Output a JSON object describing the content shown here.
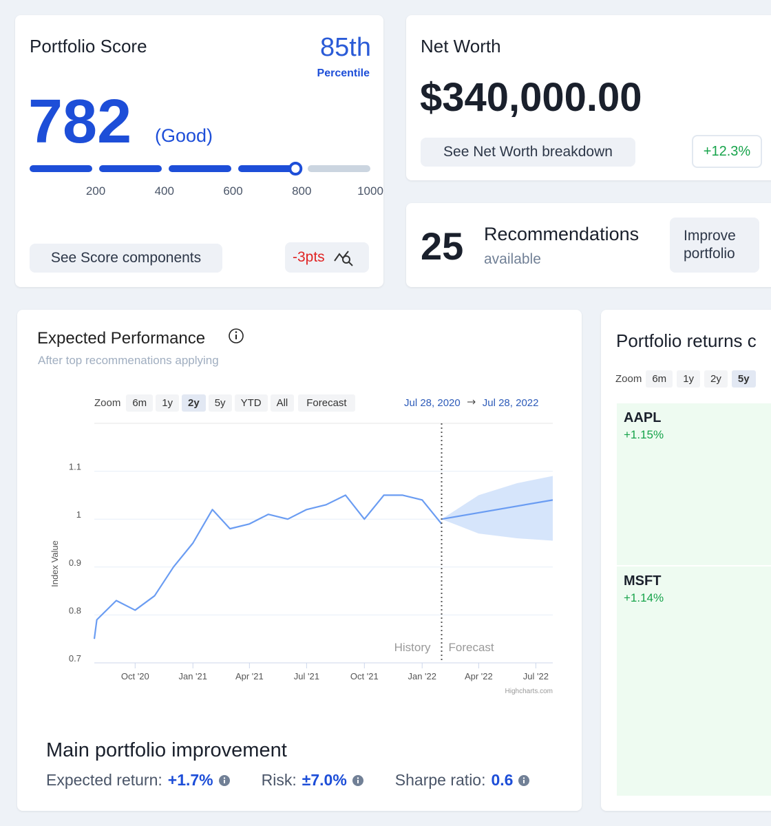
{
  "score_card": {
    "title": "Portfolio Score",
    "percentile": "85th",
    "percentile_caption": "Percentile",
    "value": 782,
    "rating": "(Good)",
    "scale": {
      "lim": [
        0,
        1000
      ],
      "ticks": [
        200,
        400,
        600,
        800,
        1000
      ]
    },
    "button": "See Score components",
    "change": "-3pts"
  },
  "net_worth_card": {
    "title": "Net Worth",
    "value": "$340,000.00",
    "button": "See Net Worth breakdown",
    "change": "+12.3%"
  },
  "recommendations_card": {
    "count": "25",
    "title": "Recommendations",
    "subtitle": "available",
    "button": "Improve portfolio"
  },
  "chart_data": {
    "type": "line",
    "title": "Expected Performance",
    "subtitle": "After top recommenations applying",
    "zoom_label": "Zoom",
    "zoom_buttons": [
      "6m",
      "1y",
      "2y",
      "5y",
      "YTD",
      "All"
    ],
    "active_zoom": "2y",
    "forecast_button": "Forecast",
    "range_from": "Jul 28, 2020",
    "range_to": "Jul 28, 2022",
    "y_label": "Index Value",
    "credit": "Highcharts.com",
    "xlim": [
      "2020-07-28",
      "2022-07-28"
    ],
    "ylim": [
      0.7,
      1.2
    ],
    "yticks": [
      0.7,
      0.8,
      0.9,
      1,
      1.1
    ],
    "grid": true,
    "xticks": [
      {
        "value": "2020-10",
        "label": "Oct '20"
      },
      {
        "value": "2021-01",
        "label": "Jan '21"
      },
      {
        "value": "2021-04",
        "label": "Apr '21"
      },
      {
        "value": "2021-07",
        "label": "Jul '21"
      },
      {
        "value": "2021-10",
        "label": "Oct '21"
      },
      {
        "value": "2022-01",
        "label": "Jan '22"
      },
      {
        "value": "2022-04",
        "label": "Apr '22"
      },
      {
        "value": "2022-07",
        "label": "Jul '22"
      }
    ],
    "series": [
      {
        "name": "History",
        "color": "#6a9cf2",
        "x": [
          "2020-07-28",
          "2020-08",
          "2020-09",
          "2020-10",
          "2020-11",
          "2020-12",
          "2021-01",
          "2021-02",
          "2021-03",
          "2021-04",
          "2021-05",
          "2021-06",
          "2021-07",
          "2021-08",
          "2021-09",
          "2021-10",
          "2021-11",
          "2021-12",
          "2022-01",
          "2022-02"
        ],
        "values": [
          0.75,
          0.79,
          0.83,
          0.81,
          0.84,
          0.9,
          0.95,
          1.02,
          0.98,
          0.99,
          1.01,
          1.0,
          1.02,
          1.03,
          1.05,
          1.0,
          1.05,
          1.05,
          1.04,
          0.99
        ]
      },
      {
        "name": "Forecast",
        "color": "#6a9cf2",
        "x": [
          "2022-02",
          "2022-07-28"
        ],
        "values": [
          1.0,
          1.04
        ]
      }
    ],
    "band": {
      "color": "#d6e5fb",
      "x": [
        "2022-02",
        "2022-04",
        "2022-06",
        "2022-07-28"
      ],
      "upper": [
        1.0,
        1.05,
        1.075,
        1.09
      ],
      "lower": [
        1.0,
        0.97,
        0.96,
        0.955
      ]
    },
    "divider": "2022-02",
    "history_label": "History",
    "forecast_label": "Forecast"
  },
  "improvement": {
    "title": "Main portfolio improvement",
    "metrics": [
      {
        "label": "Expected return:",
        "value": "+1.7%"
      },
      {
        "label": "Risk:",
        "value": "±7.0%"
      },
      {
        "label": "Sharpe ratio:",
        "value": "0.6"
      }
    ]
  },
  "returns_card": {
    "title": "Portfolio returns c",
    "zoom_label": "Zoom",
    "zoom_buttons": [
      "6m",
      "1y",
      "2y",
      "5y"
    ],
    "tiles": [
      {
        "ticker": "AAPL",
        "change": "+1.15%"
      },
      {
        "ticker": "MSFT",
        "change": "+1.14%"
      }
    ]
  }
}
